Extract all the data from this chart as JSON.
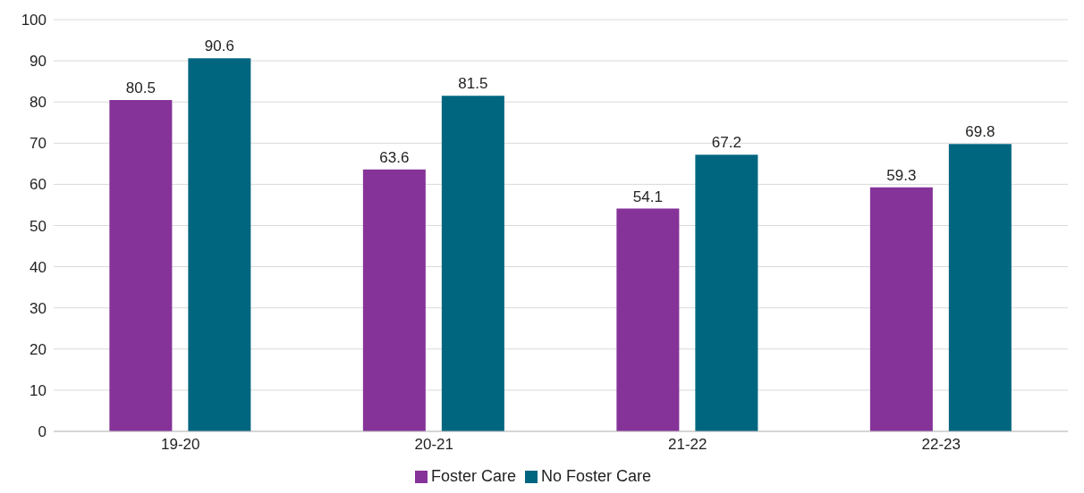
{
  "chart_data": {
    "type": "bar",
    "categories": [
      "19-20",
      "20-21",
      "21-22",
      "22-23"
    ],
    "series": [
      {
        "name": "Foster Care",
        "color": "#853399",
        "values": [
          80.5,
          63.6,
          54.1,
          59.3
        ]
      },
      {
        "name": "No Foster Care",
        "color": "#006680",
        "values": [
          90.6,
          81.5,
          67.2,
          69.8
        ]
      }
    ],
    "ylim": [
      0,
      100
    ],
    "yticks": [
      0,
      10,
      20,
      30,
      40,
      50,
      60,
      70,
      80,
      90,
      100
    ],
    "grid": "y",
    "legend": "bottom",
    "data_labels": true
  }
}
